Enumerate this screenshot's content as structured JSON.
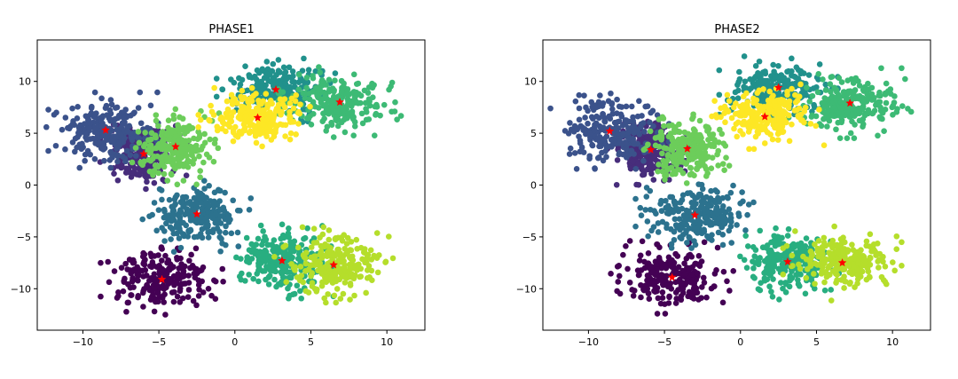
{
  "chart_data": [
    {
      "type": "scatter",
      "title": "PHASE1",
      "xlabel": "",
      "ylabel": "",
      "xlim": [
        -13,
        12.5
      ],
      "ylim": [
        -14,
        14
      ],
      "x_ticks": [
        -10,
        -5,
        0,
        5,
        10
      ],
      "y_ticks": [
        -10,
        -5,
        0,
        5,
        10
      ],
      "x_tick_labels": [
        "−10",
        "−5",
        "0",
        "5",
        "10"
      ],
      "y_tick_labels": [
        "−10",
        "−5",
        "0",
        "5",
        "10"
      ],
      "grid": false,
      "centroid_color": "#ff0000",
      "clusters": [
        {
          "color": "#440154",
          "center": [
            -4.8,
            -9.1
          ],
          "spread": [
            1.55,
            1.35
          ]
        },
        {
          "color": "#472d7b",
          "center": [
            -6.0,
            3.0
          ],
          "spread": [
            1.1,
            1.3
          ]
        },
        {
          "color": "#3b528b",
          "center": [
            -8.5,
            5.3
          ],
          "spread": [
            1.5,
            1.4
          ]
        },
        {
          "color": "#2c728e",
          "center": [
            -2.5,
            -2.8
          ],
          "spread": [
            1.5,
            1.4
          ]
        },
        {
          "color": "#21918c",
          "center": [
            2.7,
            9.2
          ],
          "spread": [
            1.5,
            1.2
          ]
        },
        {
          "color": "#28ae80",
          "center": [
            3.1,
            -7.3
          ],
          "spread": [
            1.3,
            1.4
          ]
        },
        {
          "color": "#3dba75",
          "center": [
            6.9,
            8.0
          ],
          "spread": [
            1.55,
            1.3
          ]
        },
        {
          "color": "#6ccd5a",
          "center": [
            -3.9,
            3.7
          ],
          "spread": [
            1.1,
            1.4
          ]
        },
        {
          "color": "#b5de2b",
          "center": [
            6.5,
            -7.7
          ],
          "spread": [
            1.5,
            1.4
          ]
        },
        {
          "color": "#fde725",
          "center": [
            1.5,
            6.5
          ],
          "spread": [
            1.5,
            1.2
          ]
        }
      ],
      "centroids": [
        {
          "x": -4.8,
          "y": -9.1
        },
        {
          "x": -6.0,
          "y": 3.0
        },
        {
          "x": -8.5,
          "y": 5.3
        },
        {
          "x": -2.5,
          "y": -2.8
        },
        {
          "x": 2.7,
          "y": 9.2
        },
        {
          "x": 3.1,
          "y": -7.3
        },
        {
          "x": 6.9,
          "y": 8.0
        },
        {
          "x": -3.9,
          "y": 3.7
        },
        {
          "x": 6.5,
          "y": -7.7
        },
        {
          "x": 1.5,
          "y": 6.5
        }
      ]
    },
    {
      "type": "scatter",
      "title": "PHASE2",
      "xlabel": "",
      "ylabel": "",
      "xlim": [
        -13,
        12.5
      ],
      "ylim": [
        -14,
        14
      ],
      "x_ticks": [
        -10,
        -5,
        0,
        5,
        10
      ],
      "y_ticks": [
        -10,
        -5,
        0,
        5,
        10
      ],
      "x_tick_labels": [
        "−10",
        "−5",
        "0",
        "5",
        "10"
      ],
      "y_tick_labels": [
        "−10",
        "−5",
        "0",
        "5",
        "10"
      ],
      "grid": false,
      "centroid_color": "#ff0000",
      "clusters": [
        {
          "color": "#440154",
          "center": [
            -4.5,
            -8.9
          ],
          "spread": [
            1.55,
            1.35
          ]
        },
        {
          "color": "#472d7b",
          "center": [
            -5.9,
            3.4
          ],
          "spread": [
            1.1,
            1.3
          ]
        },
        {
          "color": "#3b528b",
          "center": [
            -8.6,
            5.2
          ],
          "spread": [
            1.5,
            1.4
          ]
        },
        {
          "color": "#2c728e",
          "center": [
            -3.0,
            -2.9
          ],
          "spread": [
            1.5,
            1.4
          ]
        },
        {
          "color": "#21918c",
          "center": [
            2.5,
            9.4
          ],
          "spread": [
            1.5,
            1.2
          ]
        },
        {
          "color": "#28ae80",
          "center": [
            3.1,
            -7.4
          ],
          "spread": [
            1.3,
            1.4
          ]
        },
        {
          "color": "#3dba75",
          "center": [
            7.2,
            7.9
          ],
          "spread": [
            1.55,
            1.3
          ]
        },
        {
          "color": "#6ccd5a",
          "center": [
            -3.5,
            3.5
          ],
          "spread": [
            1.1,
            1.4
          ]
        },
        {
          "color": "#b5de2b",
          "center": [
            6.7,
            -7.5
          ],
          "spread": [
            1.5,
            1.4
          ]
        },
        {
          "color": "#fde725",
          "center": [
            1.6,
            6.6
          ],
          "spread": [
            1.5,
            1.2
          ]
        }
      ],
      "centroids": [
        {
          "x": -4.5,
          "y": -8.9
        },
        {
          "x": -5.9,
          "y": 3.4
        },
        {
          "x": -8.6,
          "y": 5.2
        },
        {
          "x": -3.0,
          "y": -2.9
        },
        {
          "x": 2.5,
          "y": 9.4
        },
        {
          "x": 3.1,
          "y": -7.4
        },
        {
          "x": 7.2,
          "y": 7.9
        },
        {
          "x": -3.5,
          "y": 3.5
        },
        {
          "x": 6.7,
          "y": -7.5
        },
        {
          "x": 1.6,
          "y": 6.6
        }
      ]
    }
  ]
}
